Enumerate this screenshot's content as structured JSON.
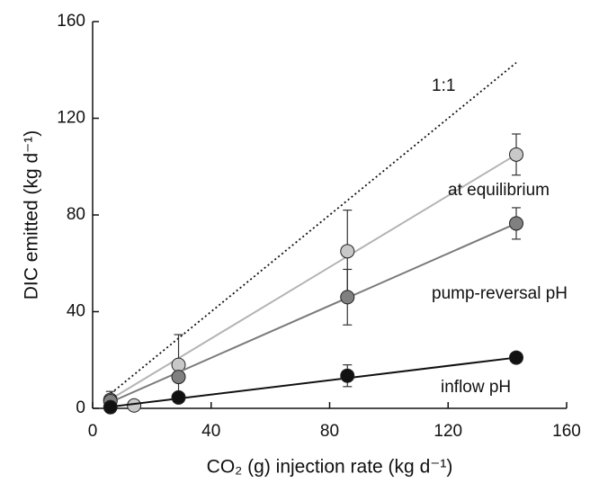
{
  "chart_data": {
    "type": "scatter",
    "xlabel": "CO₂ (g) injection rate (kg d⁻¹)",
    "ylabel": "DIC emitted (kg d⁻¹)",
    "xlim": [
      0,
      160
    ],
    "xticks": [
      0,
      40,
      80,
      120,
      160
    ],
    "ylim": [
      0,
      160
    ],
    "yticks": [
      0,
      40,
      80,
      120,
      160
    ],
    "reference_line": {
      "label": "1:1",
      "x": [
        5,
        143
      ],
      "y": [
        5,
        143
      ]
    },
    "series": [
      {
        "name": "at equilibrium",
        "color": "#c8c8c8",
        "line_color": "#b4b4b4",
        "x": [
          6,
          14,
          29,
          86,
          143
        ],
        "values": [
          3.5,
          1.2,
          18,
          65,
          105
        ],
        "errors": [
          3.5,
          null,
          12.5,
          17,
          8.5
        ],
        "fit": {
          "x": [
            5,
            143
          ],
          "y": [
            3,
            105
          ]
        }
      },
      {
        "name": "pump-reversal pH",
        "color": "#808080",
        "line_color": "#7a7a7a",
        "x": [
          6,
          29,
          86,
          143
        ],
        "values": [
          3,
          13,
          46,
          76.5
        ],
        "errors": [
          2,
          null,
          11.5,
          6.5
        ],
        "fit": {
          "x": [
            5,
            143
          ],
          "y": [
            2,
            76.5
          ]
        }
      },
      {
        "name": "inflow pH",
        "color": "#111111",
        "line_color": "#111111",
        "x": [
          6,
          29,
          86,
          143
        ],
        "values": [
          0.5,
          4.5,
          13.5,
          21
        ],
        "errors": [
          null,
          null,
          4.5,
          null
        ],
        "fit": {
          "x": [
            5,
            143
          ],
          "y": [
            0.5,
            21
          ]
        }
      }
    ]
  }
}
